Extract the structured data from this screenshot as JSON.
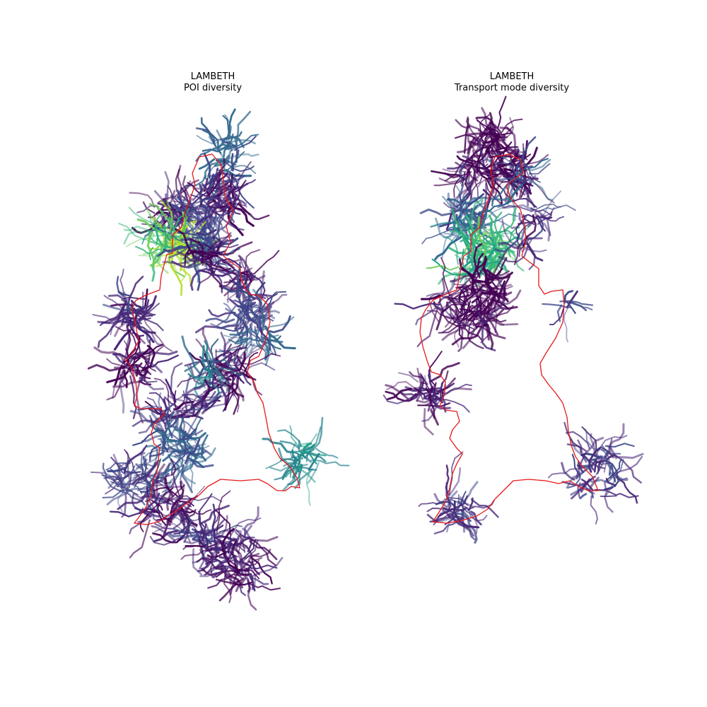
{
  "figure": {
    "panels": [
      {
        "title": "LAMBETH",
        "subtitle": "POI diversity"
      },
      {
        "title": "LAMBETH",
        "subtitle": "Transport mode diversity"
      }
    ]
  },
  "style": {
    "boundary_color": "#e41a1c",
    "background": "#ffffff",
    "colormap": "viridis",
    "colormap_stops": [
      "#440154",
      "#482878",
      "#3e4989",
      "#31688e",
      "#26828e",
      "#1f9e89",
      "#35b779",
      "#6ece58",
      "#b5de2b",
      "#fde725"
    ]
  }
}
